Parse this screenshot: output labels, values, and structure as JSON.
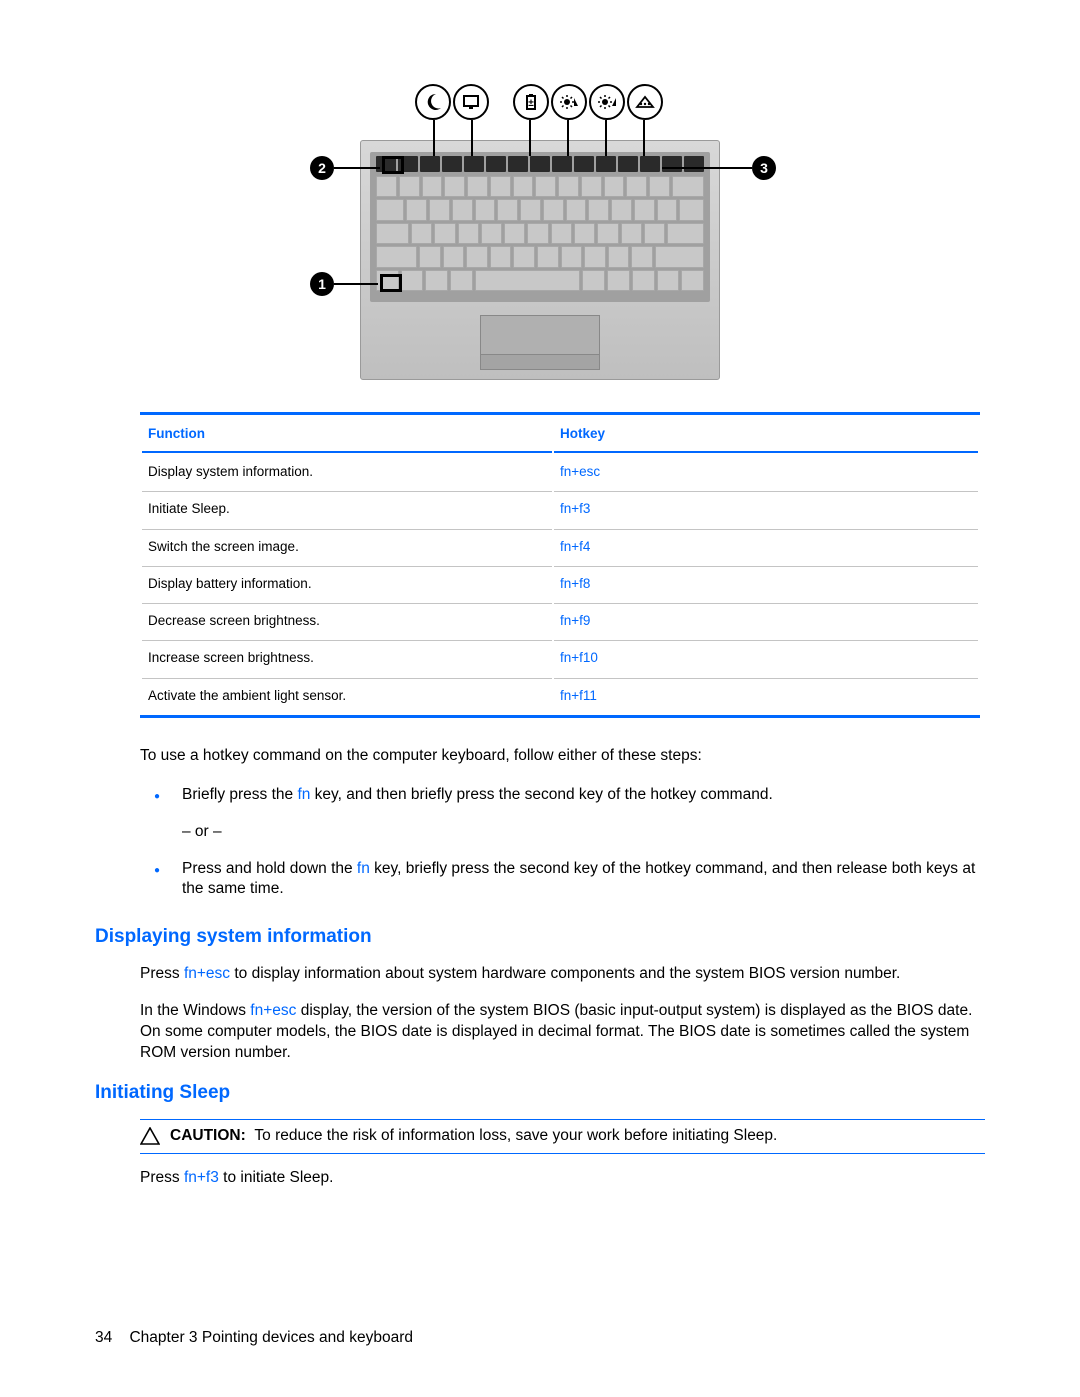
{
  "colors": {
    "accent": "#0068ff",
    "text": "#000000",
    "background": "#ffffff",
    "rule": "#c4c4c4"
  },
  "figure": {
    "icons": [
      "moon-icon",
      "display-icon",
      "battery-icon",
      "brightness-down-icon",
      "brightness-up-icon",
      "ambient-icon"
    ],
    "callouts": [
      "1",
      "2",
      "3"
    ]
  },
  "table": {
    "headers": {
      "function": "Function",
      "hotkey": "Hotkey"
    },
    "rows": [
      {
        "function": "Display system information.",
        "hotkey": "fn+esc"
      },
      {
        "function": "Initiate Sleep.",
        "hotkey": "fn+f3"
      },
      {
        "function": "Switch the screen image.",
        "hotkey": "fn+f4"
      },
      {
        "function": "Display battery information.",
        "hotkey": "fn+f8"
      },
      {
        "function": "Decrease screen brightness.",
        "hotkey": "fn+f9"
      },
      {
        "function": "Increase screen brightness.",
        "hotkey": "fn+f10"
      },
      {
        "function": "Activate the ambient light sensor.",
        "hotkey": "fn+f11"
      }
    ]
  },
  "intro": "To use a hotkey command on the computer keyboard, follow either of these steps:",
  "steps": {
    "s1a": "Briefly press the ",
    "s1fn": "fn",
    "s1b": " key, and then briefly press the second key of the hotkey command.",
    "or": "– or –",
    "s2a": "Press and hold down the ",
    "s2fn": "fn",
    "s2b": " key, briefly press the second key of the hotkey command, and then release both keys at the same time."
  },
  "section1": {
    "title": "Displaying system information",
    "p1a": "Press ",
    "p1fn": "fn+esc",
    "p1b": " to display information about system hardware components and the system BIOS version number.",
    "p2a": "In the Windows ",
    "p2fn": "fn+esc",
    "p2b": " display, the version of the system BIOS (basic input-output system) is displayed as the BIOS date. On some computer models, the BIOS date is displayed in decimal format. The BIOS date is sometimes called the system ROM version number."
  },
  "section2": {
    "title": "Initiating Sleep",
    "caution_label": "CAUTION:",
    "caution_text": "To reduce the risk of information loss, save your work before initiating Sleep.",
    "p1a": "Press ",
    "p1fn": "fn+f3",
    "p1b": " to initiate Sleep."
  },
  "footer": {
    "page": "34",
    "chapter": "Chapter 3   Pointing devices and keyboard"
  }
}
